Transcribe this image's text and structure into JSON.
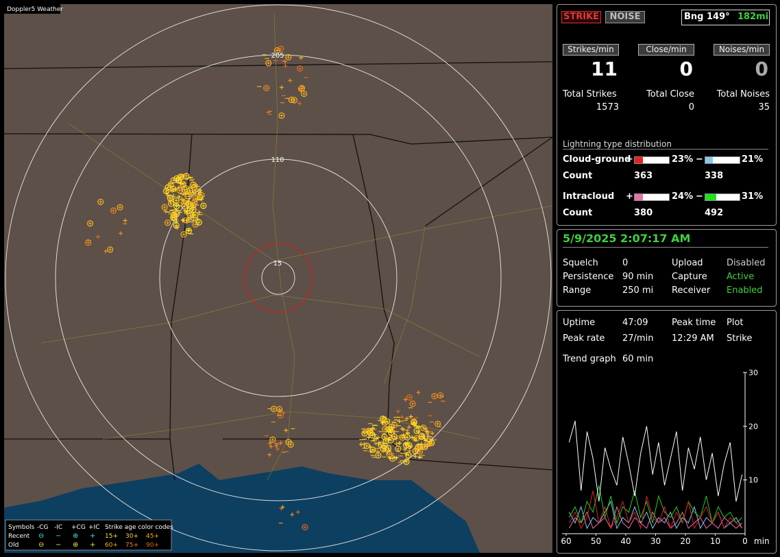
{
  "map": {
    "title": "Doppler5 Weather",
    "rings": [
      "205",
      "110",
      "15"
    ],
    "legend": {
      "symbols": "Symbols",
      "columns": [
        "-CG",
        "-IC",
        "+CG",
        "+IC"
      ],
      "age_title": "Strike age color codes",
      "rows": [
        {
          "label": "Recent",
          "symbols": [
            "⊖",
            "−",
            "⊕",
            "+"
          ],
          "ages": [
            "15+",
            "30+",
            "45+"
          ]
        },
        {
          "label": "Old",
          "symbols": [
            "⊖",
            "−",
            "⊕",
            "+"
          ],
          "ages": [
            "60+",
            "75+",
            "90+"
          ]
        }
      ]
    }
  },
  "status": {
    "strike": "STRIKE",
    "noise": "NOISE",
    "bearing": "Bng 149°",
    "distance": "182mi"
  },
  "rates": [
    {
      "label": "Strikes/min",
      "value": 11,
      "total_label": "Total Strikes",
      "total": 1573
    },
    {
      "label": "Close/min",
      "value": 0,
      "total_label": "Total Close",
      "total": 0
    },
    {
      "label": "Noises/min",
      "value": 0,
      "total_label": "Total Noises",
      "total": 35
    }
  ],
  "distribution": {
    "title": "Lightning type distribution",
    "count_label": "Count",
    "rows": [
      {
        "name": "Cloud-ground",
        "pos_sign": "+",
        "pos": {
          "value": 23,
          "label": "23%"
        },
        "pos_color": "#e8201c",
        "neg_sign": "−",
        "neg": {
          "value": 21,
          "label": "21%"
        },
        "neg_color": "#8cc4ee",
        "pos_count": 363,
        "neg_count": 338
      },
      {
        "name": "Intracloud",
        "pos_sign": "+",
        "pos": {
          "value": 24,
          "label": "24%"
        },
        "pos_color": "#e870a8",
        "neg_sign": "−",
        "neg": {
          "value": 31,
          "label": "31%"
        },
        "neg_color": "#20e020",
        "pos_count": 380,
        "neg_count": 492
      }
    ]
  },
  "settings": {
    "datetime": "5/9/2025 2:07:17 AM",
    "rows": [
      [
        "Squelch",
        "0",
        "Upload",
        "Disabled"
      ],
      [
        "Persistence",
        "90 min",
        "Capture",
        "Active"
      ],
      [
        "Range",
        "250 mi",
        "Receiver",
        "Enabled"
      ]
    ]
  },
  "stats": {
    "rows": [
      [
        "Uptime",
        "47:09",
        "Peak time",
        "Plot"
      ],
      [
        "Peak rate",
        "27/min",
        "12:29 AM",
        "Strike"
      ]
    ],
    "trend_label": "Trend graph",
    "trend_window": "60 min"
  },
  "trend": {
    "xlim": [
      60,
      0
    ],
    "ylim": [
      0,
      30
    ],
    "yticks": [
      10,
      20,
      30
    ],
    "xticks": [
      60,
      50,
      40,
      30,
      20,
      10,
      0
    ],
    "x_unit": "min",
    "x": [
      59,
      57,
      55,
      53,
      51,
      49,
      47,
      45,
      43,
      41,
      39,
      37,
      35,
      33,
      31,
      29,
      27,
      25,
      23,
      21,
      19,
      17,
      15,
      13,
      11,
      9,
      7,
      5,
      3,
      1
    ],
    "series": [
      {
        "color": "#ffffff",
        "values": [
          17,
          21,
          8,
          19,
          14,
          6,
          16,
          12,
          9,
          18,
          13,
          7,
          15,
          20,
          11,
          17,
          9,
          14,
          19,
          8,
          16,
          12,
          18,
          10,
          15,
          7,
          13,
          17,
          6,
          11
        ]
      },
      {
        "color": "#e02020",
        "values": [
          2,
          4,
          1,
          3,
          8,
          2,
          5,
          1,
          3,
          6,
          2,
          4,
          1,
          7,
          3,
          2,
          5,
          1,
          4,
          2,
          6,
          1,
          3,
          5,
          2,
          4,
          1,
          3,
          2,
          1
        ]
      },
      {
        "color": "#20d020",
        "values": [
          3,
          5,
          2,
          6,
          4,
          9,
          3,
          7,
          2,
          5,
          4,
          8,
          3,
          6,
          2,
          7,
          4,
          3,
          5,
          2,
          6,
          4,
          3,
          7,
          2,
          5,
          3,
          4,
          2,
          3
        ]
      },
      {
        "color": "#8cc4ee",
        "values": [
          4,
          2,
          5,
          1,
          3,
          2,
          4,
          6,
          1,
          3,
          2,
          5,
          2,
          4,
          1,
          3,
          2,
          4,
          1,
          3,
          2,
          5,
          1,
          3,
          2,
          4,
          1,
          2,
          3,
          1
        ]
      },
      {
        "color": "#e870a8",
        "values": [
          1,
          3,
          2,
          4,
          1,
          2,
          3,
          1,
          5,
          2,
          1,
          3,
          2,
          1,
          4,
          2,
          3,
          1,
          2,
          4,
          1,
          2,
          3,
          1,
          2,
          1,
          3,
          2,
          1,
          2
        ]
      }
    ]
  }
}
